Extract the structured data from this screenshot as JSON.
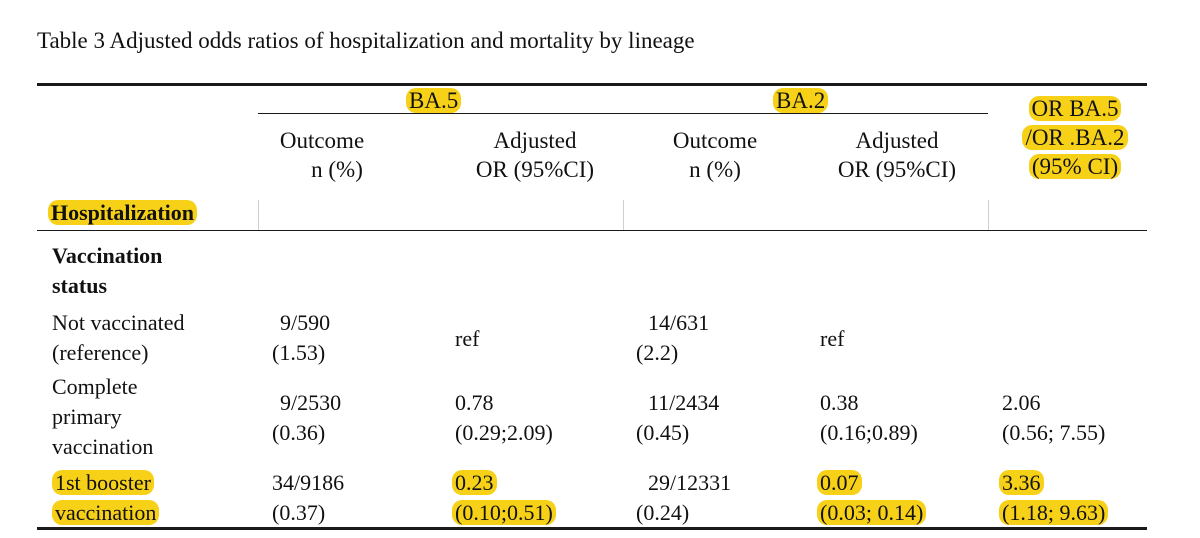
{
  "caption": "Table 3 Adjusted odds ratios of hospitalization and mortality by lineage",
  "groups": {
    "ba5": "BA.5",
    "ba2": "BA.2",
    "ratio": [
      "OR BA.5",
      "/OR .BA.2",
      "(95% CI)"
    ]
  },
  "subheaders": {
    "outcome": [
      "Outcome",
      "n (%)"
    ],
    "adjusted": [
      "Adjusted",
      "OR (95%CI)"
    ]
  },
  "section": "Hospitalization",
  "subsection": [
    "Vaccination",
    "status"
  ],
  "rows": [
    {
      "label": [
        "Not vaccinated",
        "(reference)"
      ],
      "ba5_outcome": [
        "9/590",
        "(1.53)"
      ],
      "ba5_or": [
        "ref"
      ],
      "ba2_outcome": [
        "14/631",
        "(2.2)"
      ],
      "ba2_or": [
        "ref"
      ],
      "ratio": []
    },
    {
      "label": [
        "Complete",
        "primary",
        "vaccination"
      ],
      "ba5_outcome": [
        "9/2530",
        "(0.36)"
      ],
      "ba5_or": [
        "0.78",
        "(0.29;2.09)"
      ],
      "ba2_outcome": [
        "11/2434",
        "(0.45)"
      ],
      "ba2_or": [
        "0.38",
        "(0.16;0.89)"
      ],
      "ratio": [
        "2.06",
        "(0.56; 7.55)"
      ]
    },
    {
      "label": [
        "1st booster",
        "vaccination"
      ],
      "ba5_outcome": [
        "34/9186",
        "(0.37)"
      ],
      "ba5_or": [
        "0.23",
        "(0.10;0.51)"
      ],
      "ba2_outcome": [
        "29/12331",
        "(0.24)"
      ],
      "ba2_or": [
        "0.07",
        "(0.03; 0.14)"
      ],
      "ratio": [
        "3.36",
        "(1.18; 9.63)"
      ]
    }
  ],
  "highlight_color": "#f7d117"
}
